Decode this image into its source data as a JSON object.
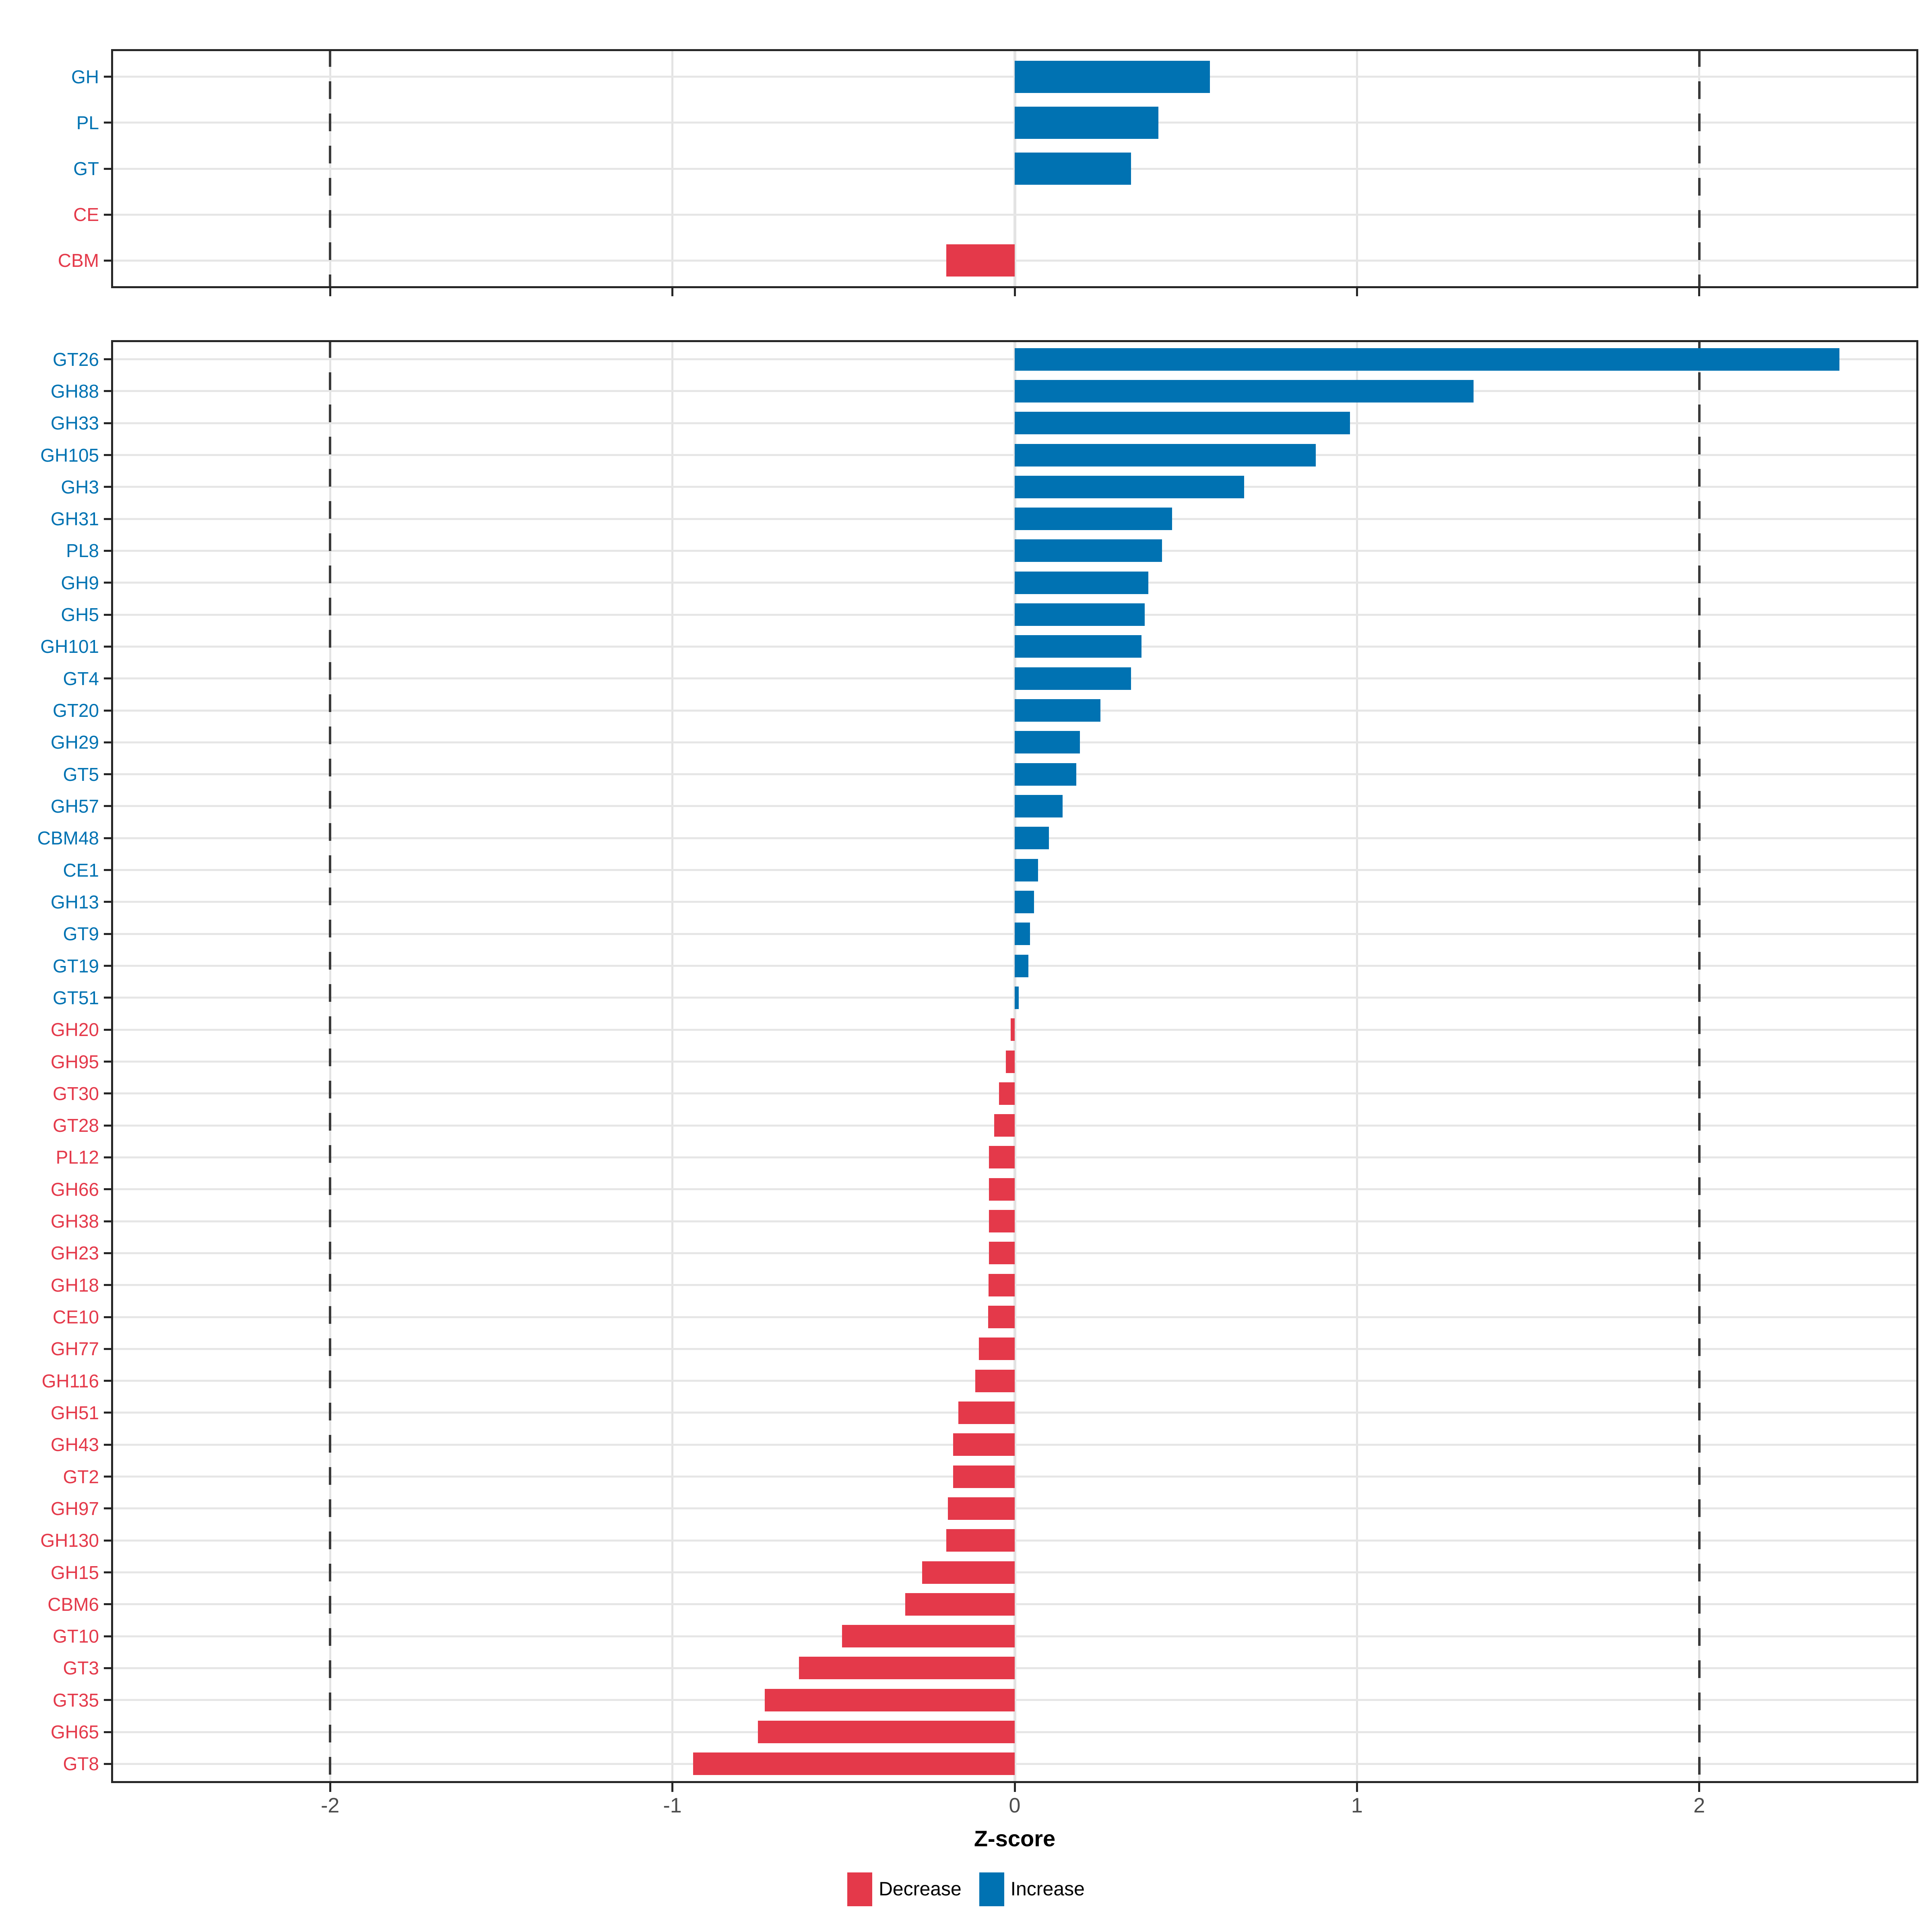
{
  "chart_data": {
    "type": "bar",
    "orientation": "horizontal-diverging",
    "title": "",
    "xlabel": "Z-score",
    "ylabel": "",
    "xlim": [
      -2.64,
      2.64
    ],
    "x_ticks": [
      -2,
      -1,
      0,
      1,
      2
    ],
    "x_tick_labels": [
      "-2",
      "-1",
      "0",
      "1",
      "2"
    ],
    "reference_dashed_x": [
      -2,
      2
    ],
    "grid": true,
    "legend_position": "bottom",
    "colors": {
      "increase": "#0072B2",
      "decrease": "#E4394A",
      "grid": "#E3E3E3",
      "dashed_line": "#3A3A3A",
      "axis_text": "#4D4D4D",
      "panel_border": "#262626"
    },
    "legend": [
      {
        "label": "Decrease",
        "key": "decrease",
        "color": "#E4394A"
      },
      {
        "label": "Increase",
        "key": "increase",
        "color": "#0072B2"
      }
    ],
    "panels": [
      {
        "id": "summary",
        "categories": [
          "GH",
          "PL",
          "GT",
          "CE",
          "CBM"
        ],
        "values": [
          0.57,
          0.42,
          0.34,
          0.0,
          -0.2
        ]
      },
      {
        "id": "families",
        "categories": [
          "GT26",
          "GH88",
          "GH33",
          "GH105",
          "GH3",
          "GH31",
          "PL8",
          "GH9",
          "GH5",
          "GH101",
          "GT4",
          "GT20",
          "GH29",
          "GT5",
          "GH57",
          "CBM48",
          "CE1",
          "GH13",
          "GT9",
          "GT19",
          "GT51",
          "GH20",
          "GH95",
          "GT30",
          "GT28",
          "PL12",
          "GH66",
          "GH38",
          "GH23",
          "GH18",
          "CE10",
          "GH77",
          "GH116",
          "GH51",
          "GH43",
          "GT2",
          "GH97",
          "GH130",
          "GH15",
          "CBM6",
          "GT10",
          "GT3",
          "GT35",
          "GH65",
          "GT8"
        ],
        "values": [
          2.41,
          1.34,
          0.98,
          0.88,
          0.67,
          0.46,
          0.43,
          0.39,
          0.38,
          0.37,
          0.34,
          0.25,
          0.19,
          0.18,
          0.14,
          0.1,
          0.068,
          0.056,
          0.045,
          0.04,
          0.012,
          -0.012,
          -0.026,
          -0.046,
          -0.06,
          -0.075,
          -0.075,
          -0.075,
          -0.075,
          -0.077,
          -0.078,
          -0.105,
          -0.115,
          -0.165,
          -0.18,
          -0.18,
          -0.195,
          -0.2,
          -0.27,
          -0.32,
          -0.505,
          -0.63,
          -0.73,
          -0.75,
          -0.94
        ]
      }
    ]
  }
}
